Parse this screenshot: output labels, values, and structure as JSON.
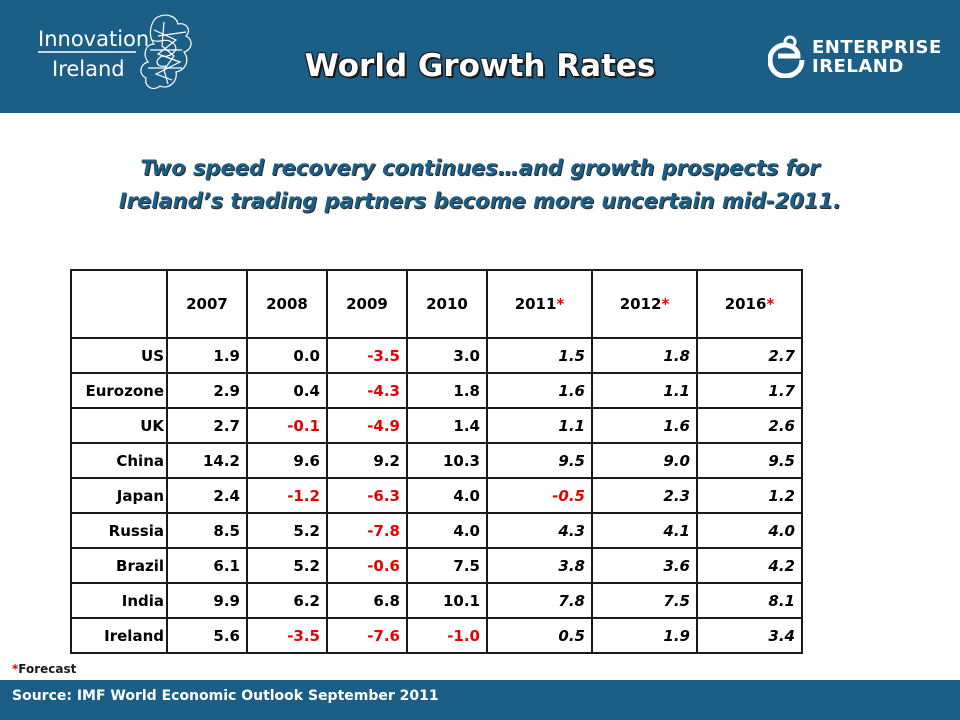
{
  "header": {
    "logo_left_text": [
      "Innovation",
      "Ireland"
    ],
    "logo_right_text": [
      "ENTERPRISE",
      "IRELAND"
    ],
    "title": "World Growth Rates"
  },
  "subtitle": {
    "line1": "Two speed recovery continues…and growth prospects for",
    "line2": "Ireland’s trading partners become more uncertain mid-2011."
  },
  "table": {
    "years": [
      {
        "label": "2007",
        "star": ""
      },
      {
        "label": "2008",
        "star": ""
      },
      {
        "label": "2009",
        "star": ""
      },
      {
        "label": "2010",
        "star": ""
      },
      {
        "label": "2011",
        "star": "*"
      },
      {
        "label": "2012",
        "star": "*"
      },
      {
        "label": "2016",
        "star": "*"
      }
    ],
    "rows": [
      {
        "country": "US",
        "values": [
          "1.9",
          "0.0",
          "-3.5",
          "3.0",
          "1.5",
          "1.8",
          "2.7"
        ]
      },
      {
        "country": "Eurozone",
        "values": [
          "2.9",
          "0.4",
          "-4.3",
          "1.8",
          "1.6",
          "1.1",
          "1.7"
        ]
      },
      {
        "country": "UK",
        "values": [
          "2.7",
          "-0.1",
          "-4.9",
          "1.4",
          "1.1",
          "1.6",
          "2.6"
        ]
      },
      {
        "country": "China",
        "values": [
          "14.2",
          "9.6",
          "9.2",
          "10.3",
          "9.5",
          "9.0",
          "9.5"
        ]
      },
      {
        "country": "Japan",
        "values": [
          "2.4",
          "-1.2",
          "-6.3",
          "4.0",
          "-0.5",
          "2.3",
          "1.2"
        ]
      },
      {
        "country": "Russia",
        "values": [
          "8.5",
          "5.2",
          "-7.8",
          "4.0",
          "4.3",
          "4.1",
          "4.0"
        ]
      },
      {
        "country": "Brazil",
        "values": [
          "6.1",
          "5.2",
          "-0.6",
          "7.5",
          "3.8",
          "3.6",
          "4.2"
        ]
      },
      {
        "country": "India",
        "values": [
          "9.9",
          "6.2",
          "6.8",
          "10.1",
          "7.8",
          "7.5",
          "8.1"
        ]
      },
      {
        "country": "Ireland",
        "values": [
          "5.6",
          "-3.5",
          "-7.6",
          "-1.0",
          "0.5",
          "1.9",
          "3.4"
        ]
      }
    ],
    "negative_color": "#e60000"
  },
  "footnote": {
    "star": "*",
    "text": "Forecast"
  },
  "source": "Source: IMF World Economic Outlook September 2011",
  "colors": {
    "brand_blue": "#1c5f86",
    "negative_red": "#e60000"
  }
}
